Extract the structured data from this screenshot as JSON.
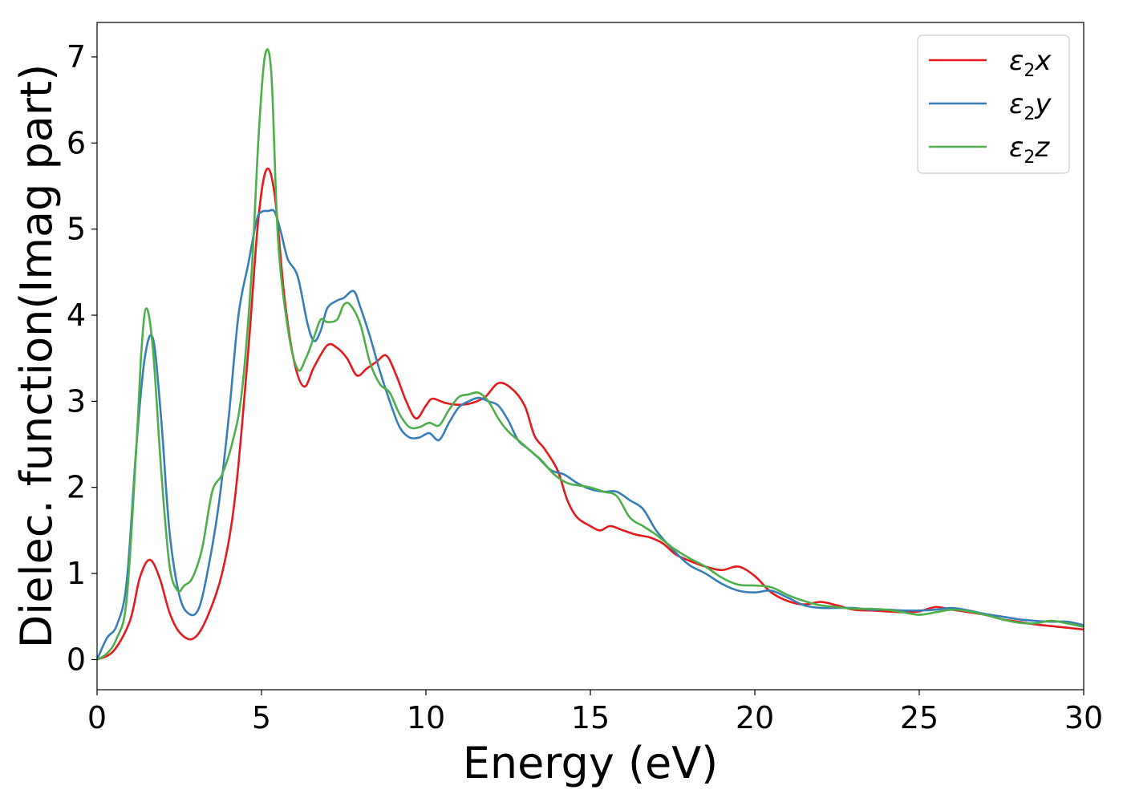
{
  "chart_data": {
    "type": "line",
    "xlabel": "Energy (eV)",
    "ylabel": "Dielec. function(Imag part)",
    "xlim": [
      0,
      30
    ],
    "ylim": [
      -0.35,
      7.4
    ],
    "xticks": [
      0,
      5,
      10,
      15,
      20,
      25,
      30
    ],
    "yticks": [
      0,
      1,
      2,
      3,
      4,
      5,
      6,
      7
    ],
    "grid": false,
    "legend_position": "top-right",
    "series": [
      {
        "name": "ε2x",
        "legend": {
          "symbol": "ε",
          "sub": "2",
          "var": "x"
        },
        "color": "#e41a1c",
        "x": [
          0,
          0.5,
          1.0,
          1.3,
          1.6,
          1.9,
          2.2,
          2.5,
          2.9,
          3.3,
          3.8,
          4.2,
          4.6,
          4.9,
          5.15,
          5.4,
          5.7,
          6.0,
          6.3,
          6.6,
          7.0,
          7.3,
          7.6,
          7.9,
          8.2,
          8.5,
          8.8,
          9.1,
          9.4,
          9.7,
          10.0,
          10.2,
          10.6,
          11.0,
          11.4,
          11.8,
          12.2,
          12.6,
          13.0,
          13.3,
          13.6,
          14.0,
          14.3,
          14.6,
          15.0,
          15.3,
          15.6,
          16.0,
          16.4,
          16.8,
          17.2,
          17.6,
          18.0,
          18.5,
          19.0,
          19.5,
          20.0,
          20.5,
          21.0,
          21.5,
          22.0,
          22.5,
          23.0,
          23.5,
          24.0,
          24.5,
          25.0,
          25.5,
          26.0,
          26.5,
          27.0,
          27.5,
          28.0,
          28.5,
          29.0,
          29.5,
          30.0
        ],
        "y": [
          0.0,
          0.1,
          0.45,
          0.95,
          1.16,
          0.95,
          0.55,
          0.32,
          0.24,
          0.45,
          1.0,
          1.9,
          3.6,
          5.1,
          5.69,
          5.4,
          4.2,
          3.45,
          3.17,
          3.4,
          3.65,
          3.62,
          3.5,
          3.3,
          3.38,
          3.46,
          3.53,
          3.3,
          3.0,
          2.8,
          2.95,
          3.03,
          2.98,
          2.96,
          2.98,
          3.05,
          3.21,
          3.15,
          2.95,
          2.6,
          2.45,
          2.2,
          1.85,
          1.65,
          1.55,
          1.5,
          1.55,
          1.5,
          1.45,
          1.42,
          1.35,
          1.22,
          1.15,
          1.08,
          1.04,
          1.08,
          0.97,
          0.78,
          0.68,
          0.64,
          0.67,
          0.63,
          0.58,
          0.57,
          0.56,
          0.55,
          0.56,
          0.61,
          0.58,
          0.55,
          0.52,
          0.47,
          0.44,
          0.41,
          0.39,
          0.37,
          0.35
        ]
      },
      {
        "name": "ε2y",
        "legend": {
          "symbol": "ε",
          "sub": "2",
          "var": "y"
        },
        "color": "#377eb8",
        "x": [
          0,
          0.3,
          0.6,
          0.9,
          1.2,
          1.45,
          1.7,
          1.95,
          2.2,
          2.5,
          2.8,
          3.1,
          3.4,
          3.7,
          4.0,
          4.3,
          4.6,
          4.85,
          5.0,
          5.2,
          5.4,
          5.6,
          5.8,
          6.1,
          6.4,
          6.6,
          6.8,
          7.0,
          7.3,
          7.5,
          7.8,
          8.0,
          8.3,
          8.6,
          8.9,
          9.2,
          9.5,
          9.8,
          10.1,
          10.4,
          10.7,
          11.0,
          11.3,
          11.6,
          11.9,
          12.2,
          12.5,
          12.8,
          13.1,
          13.4,
          13.8,
          14.2,
          14.6,
          15.0,
          15.4,
          15.8,
          16.2,
          16.6,
          17.0,
          17.5,
          18.0,
          18.5,
          19.0,
          19.5,
          20.0,
          20.5,
          21.0,
          21.5,
          22.0,
          22.5,
          23.0,
          23.5,
          24.0,
          24.5,
          25.0,
          25.5,
          26.0,
          26.5,
          27.0,
          27.5,
          28.0,
          28.5,
          29.0,
          29.5,
          30.0
        ],
        "y": [
          0.0,
          0.25,
          0.4,
          0.9,
          2.5,
          3.5,
          3.73,
          2.8,
          1.5,
          0.75,
          0.53,
          0.6,
          1.1,
          1.8,
          2.8,
          4.0,
          4.6,
          5.1,
          5.2,
          5.21,
          5.2,
          4.95,
          4.65,
          4.45,
          3.9,
          3.7,
          3.82,
          4.08,
          4.17,
          4.2,
          4.28,
          4.1,
          3.75,
          3.35,
          3.0,
          2.7,
          2.58,
          2.58,
          2.63,
          2.55,
          2.75,
          2.93,
          3.0,
          3.04,
          3.0,
          2.95,
          2.78,
          2.55,
          2.45,
          2.35,
          2.2,
          2.15,
          2.05,
          1.98,
          1.95,
          1.95,
          1.85,
          1.75,
          1.5,
          1.28,
          1.1,
          1.0,
          0.88,
          0.8,
          0.78,
          0.8,
          0.72,
          0.63,
          0.6,
          0.6,
          0.6,
          0.58,
          0.58,
          0.57,
          0.57,
          0.58,
          0.6,
          0.57,
          0.53,
          0.5,
          0.47,
          0.45,
          0.44,
          0.44,
          0.4
        ]
      },
      {
        "name": "ε2z",
        "legend": {
          "symbol": "ε",
          "sub": "2",
          "var": "z"
        },
        "color": "#4daf4a",
        "x": [
          0,
          0.3,
          0.6,
          0.9,
          1.2,
          1.35,
          1.5,
          1.7,
          1.95,
          2.2,
          2.45,
          2.65,
          2.9,
          3.2,
          3.5,
          3.8,
          4.1,
          4.4,
          4.7,
          4.9,
          5.1,
          5.3,
          5.5,
          5.8,
          6.1,
          6.35,
          6.6,
          6.8,
          7.0,
          7.3,
          7.5,
          7.7,
          8.0,
          8.3,
          8.6,
          8.9,
          9.2,
          9.5,
          9.8,
          10.1,
          10.4,
          10.7,
          11.0,
          11.3,
          11.6,
          11.9,
          12.2,
          12.5,
          12.8,
          13.1,
          13.5,
          13.9,
          14.3,
          14.7,
          15.0,
          15.4,
          15.8,
          16.2,
          16.6,
          17.0,
          17.5,
          18.0,
          18.5,
          19.0,
          19.5,
          20.0,
          20.5,
          21.0,
          21.5,
          22.0,
          22.5,
          23.0,
          23.5,
          24.0,
          24.5,
          25.0,
          25.5,
          26.0,
          26.5,
          27.0,
          27.5,
          28.0,
          28.5,
          29.0,
          29.5,
          30.0
        ],
        "y": [
          0.0,
          0.07,
          0.25,
          0.7,
          2.5,
          3.6,
          4.08,
          3.6,
          2.2,
          1.1,
          0.8,
          0.86,
          0.95,
          1.3,
          1.95,
          2.15,
          2.5,
          3.1,
          4.5,
          6.0,
          7.0,
          6.8,
          4.9,
          3.85,
          3.37,
          3.5,
          3.75,
          3.95,
          3.92,
          3.95,
          4.12,
          4.12,
          3.9,
          3.45,
          3.2,
          3.1,
          2.85,
          2.7,
          2.7,
          2.75,
          2.72,
          2.9,
          3.05,
          3.08,
          3.1,
          3.0,
          2.8,
          2.65,
          2.55,
          2.45,
          2.32,
          2.15,
          2.05,
          2.02,
          2.0,
          1.95,
          1.9,
          1.65,
          1.55,
          1.45,
          1.3,
          1.18,
          1.08,
          0.95,
          0.87,
          0.86,
          0.84,
          0.75,
          0.68,
          0.63,
          0.61,
          0.59,
          0.59,
          0.58,
          0.55,
          0.52,
          0.55,
          0.58,
          0.56,
          0.52,
          0.47,
          0.43,
          0.42,
          0.45,
          0.42,
          0.38
        ]
      }
    ]
  }
}
